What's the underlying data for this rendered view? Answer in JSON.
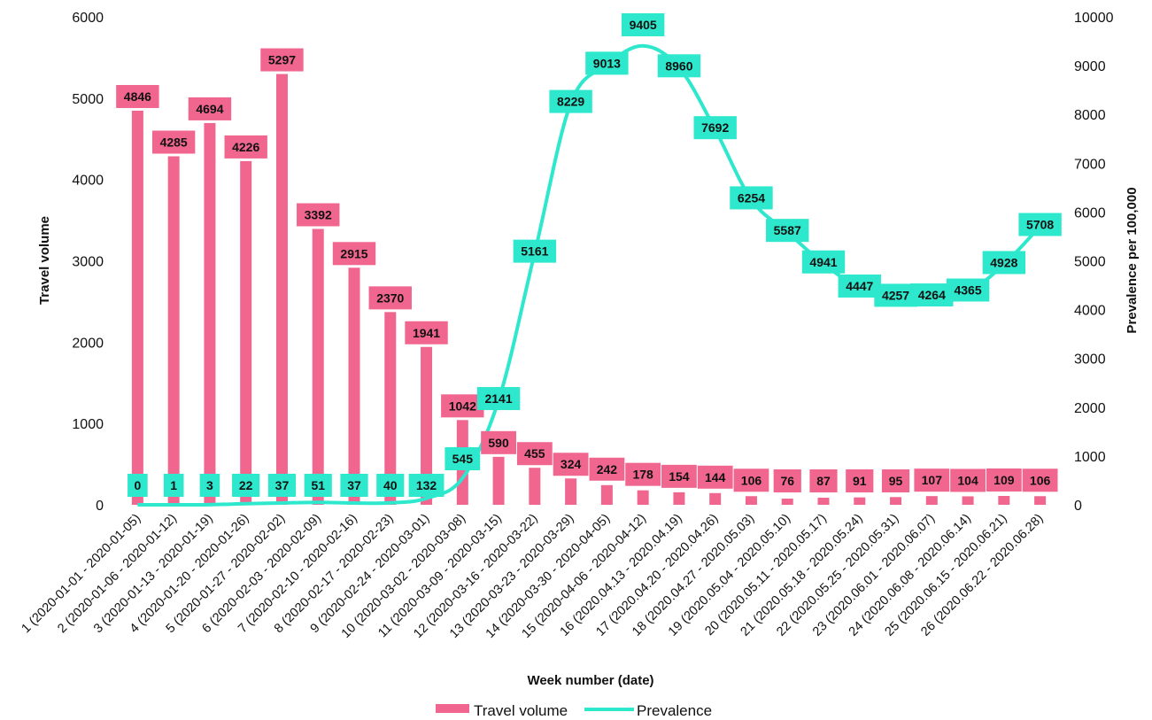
{
  "chart_data": {
    "type": "bar+line",
    "title": "",
    "xlabel": "Week number (date)",
    "ylabel": "Travel volume",
    "y2label": "Prevalence per 100,000",
    "ylim": [
      0,
      6000
    ],
    "yticks": [
      0,
      1000,
      2000,
      3000,
      4000,
      5000,
      6000
    ],
    "y2lim": [
      0,
      10000
    ],
    "y2ticks": [
      0,
      1000,
      2000,
      3000,
      4000,
      5000,
      6000,
      7000,
      8000,
      9000,
      10000
    ],
    "grid": false,
    "legend_position": "bottom",
    "colors": {
      "bar": "#f0668f",
      "line": "#2de8cc",
      "bar_label_bg": "#f0668f",
      "line_label_bg": "#2de8cc"
    },
    "categories": [
      "1 (2020-01-01 - 2020-01-05)",
      "2 (2020-01-06 - 2020-01-12)",
      "3 (2020-01-13 - 2020-01-19)",
      "4 (2020-01-20 - 2020-01-26)",
      "5 (2020-01-27 - 2020-02-02)",
      "6 (2020-02-03 - 2020-02-09)",
      "7 (2020-02-10 - 2020-02-16)",
      "8 (2020-02-17 - 2020-02-23)",
      "9 (2020-02-24 - 2020-03-01)",
      "10 (2020-03-02 - 2020-03-08)",
      "11 (2020-03-09 - 2020-03-15)",
      "12 (2020-03-16 - 2020-03-22)",
      "13 (2020-03-23 - 2020-03-29)",
      "14 (2020-03-30 - 2020-04-05)",
      "15 (2020-04-06 - 2020-04-12)",
      "16 (2020.04.13 - 2020.04.19)",
      "17 (2020.04.20 - 2020.04.26)",
      "18 (2020.04.27 - 2020.05.03)",
      "19 (2020.05.04 - 2020.05.10)",
      "20 (2020.05.11 - 2020.05.17)",
      "21 (2020.05.18 - 2020.05.24)",
      "22 (2020.05.25 - 2020.05.31)",
      "23 (2020.06.01 - 2020.06.07)",
      "24 (2020.06.08 - 2020.06.14)",
      "25 (2020.06.15 - 2020.06.21)",
      "26 (2020.06.22 - 2020.06.28)"
    ],
    "series": [
      {
        "name": "Travel volume",
        "type": "bar",
        "axis": "left",
        "values": [
          4846,
          4285,
          4694,
          4226,
          5297,
          3392,
          2915,
          2370,
          1941,
          1042,
          590,
          455,
          324,
          242,
          178,
          154,
          144,
          106,
          76,
          87,
          91,
          95,
          107,
          104,
          109,
          106
        ]
      },
      {
        "name": "Prevalence",
        "type": "line",
        "axis": "right",
        "values": [
          0,
          1,
          3,
          22,
          37,
          51,
          37,
          40,
          132,
          545,
          2141,
          5161,
          8229,
          9013,
          9405,
          8960,
          7692,
          6254,
          5587,
          4941,
          4447,
          4257,
          4264,
          4365,
          4928,
          5708
        ]
      }
    ]
  }
}
